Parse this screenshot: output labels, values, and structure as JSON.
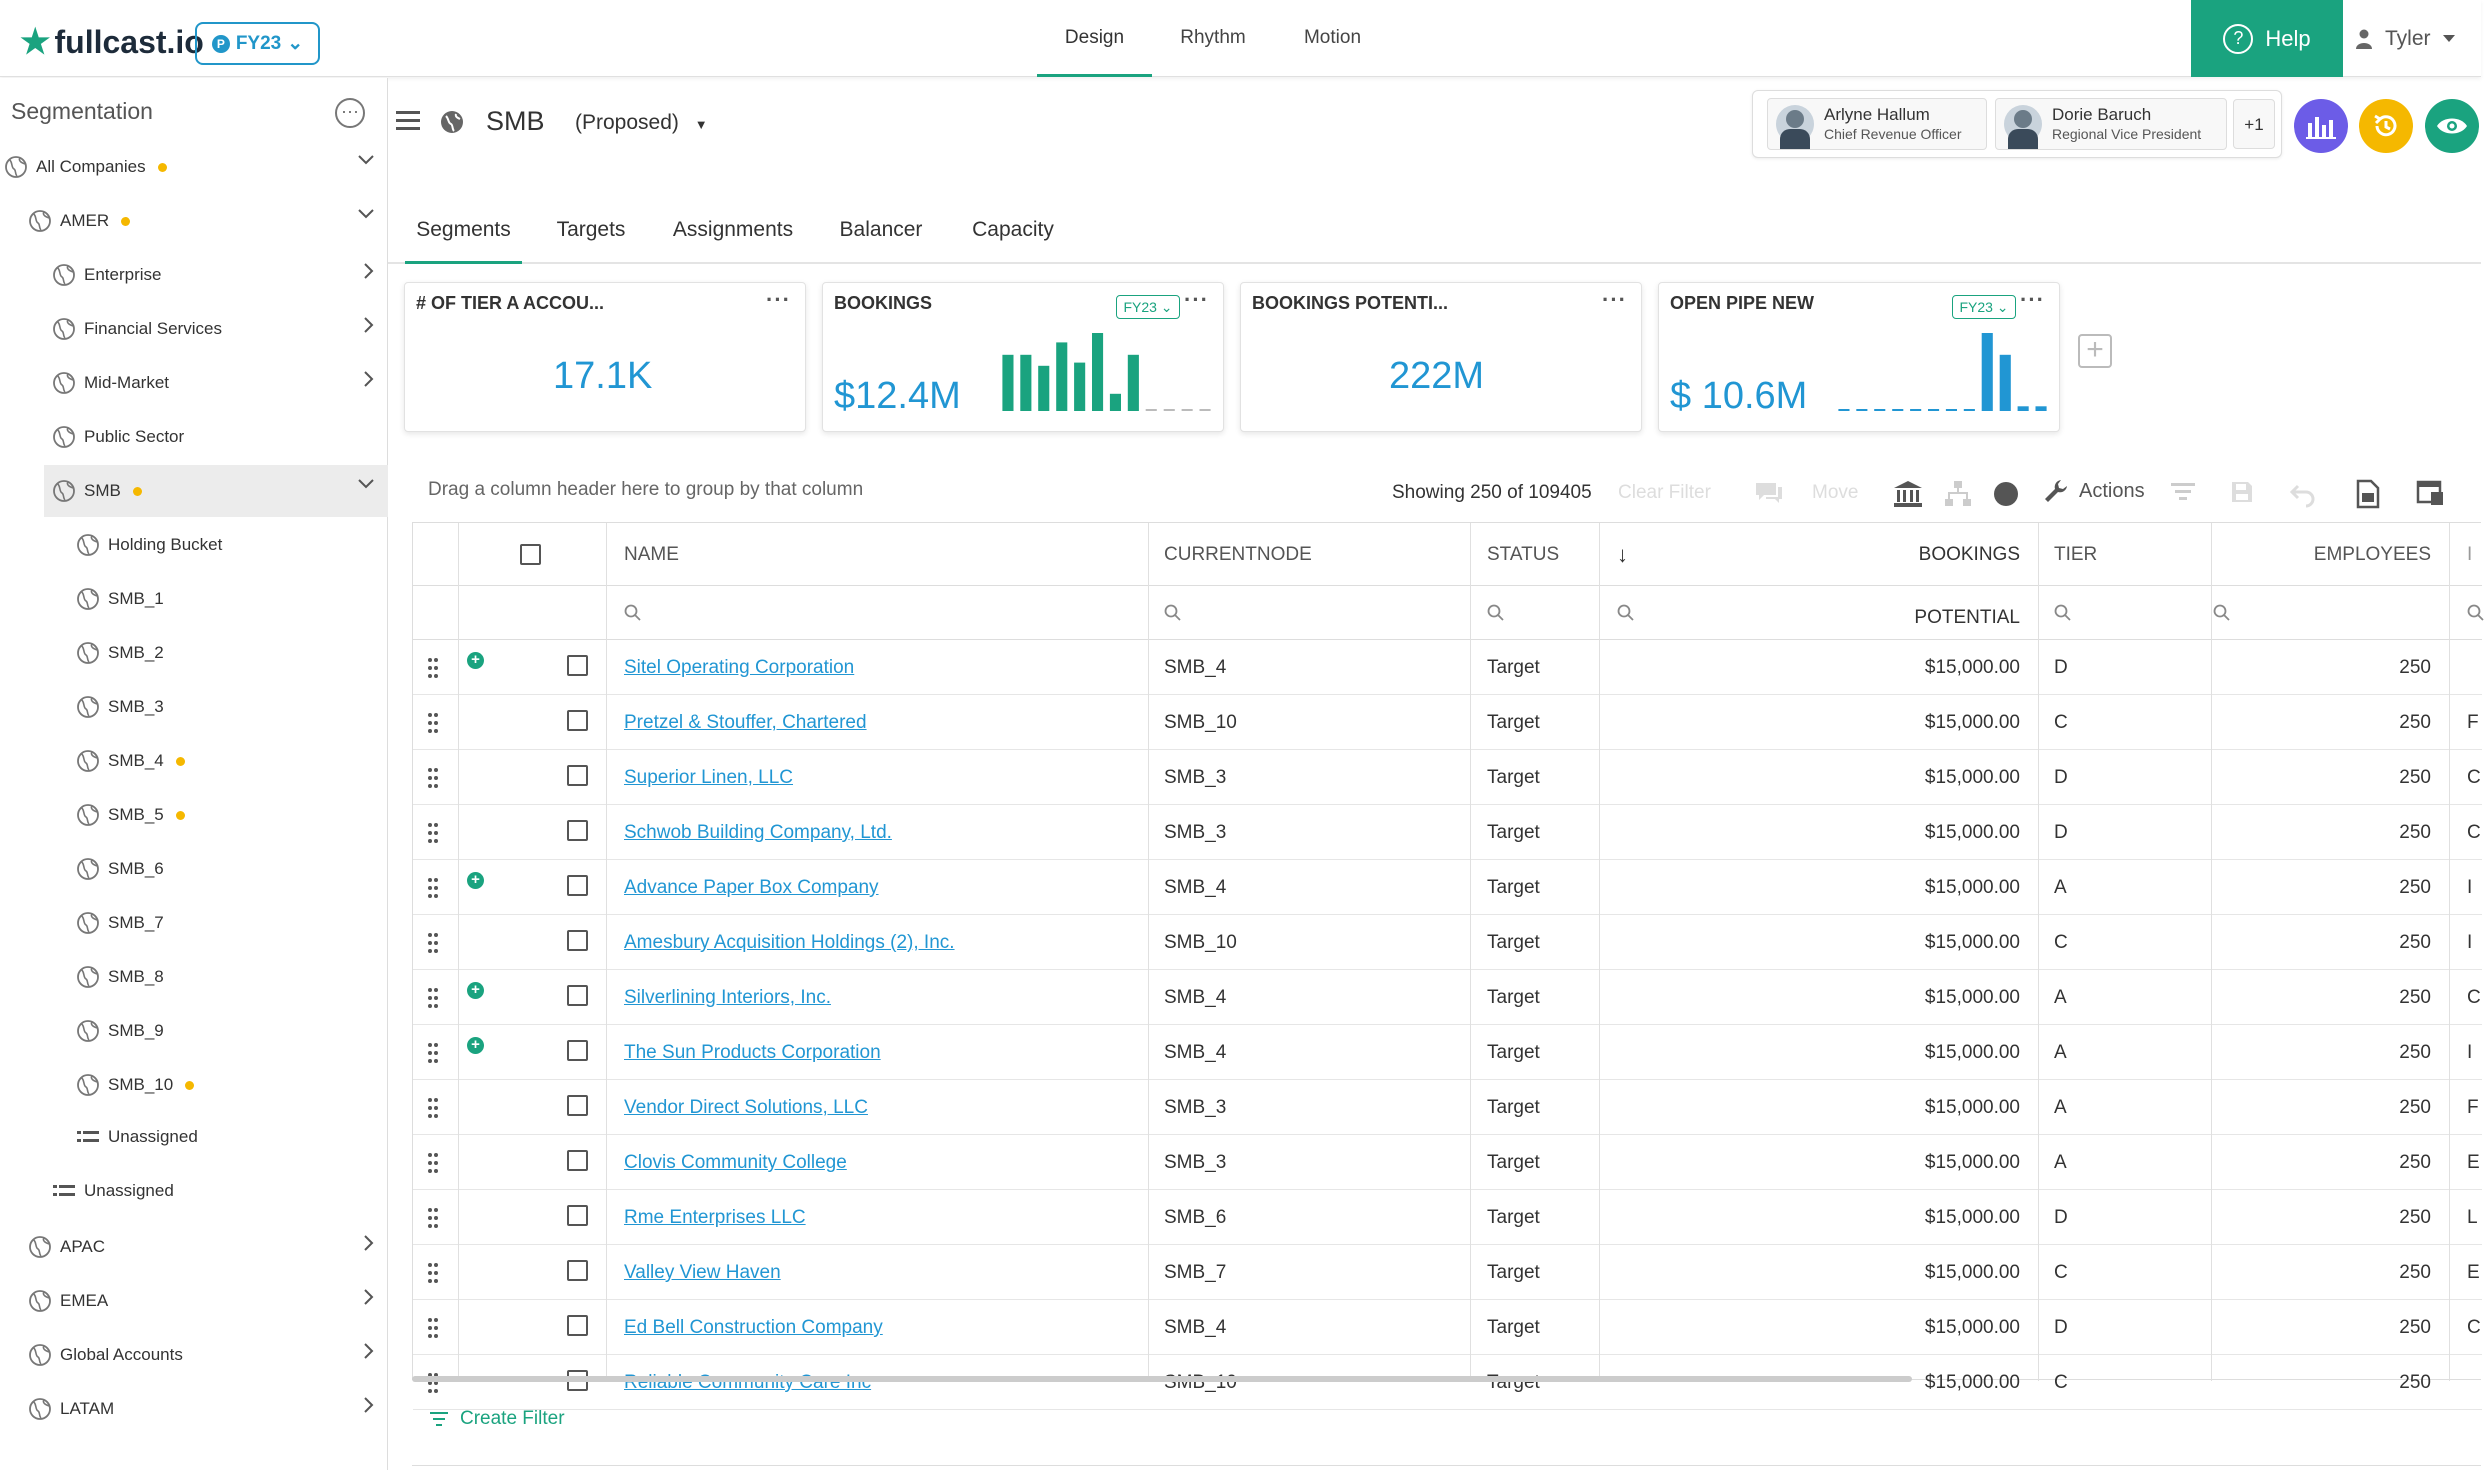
{
  "app": {
    "logo_text": "fullcast.io",
    "fy_label": "FY23",
    "fy_badge": "P"
  },
  "nav": {
    "tabs": [
      "Design",
      "Rhythm",
      "Motion"
    ],
    "active": "Design",
    "help_label": "Help",
    "user_name": "Tyler"
  },
  "sidebar": {
    "title": "Segmentation",
    "items": [
      {
        "label": "All Companies",
        "dot": true,
        "chevron": "down"
      },
      {
        "label": "AMER",
        "dot": true,
        "chevron": "down"
      },
      {
        "label": "Enterprise",
        "dot": false,
        "chevron": "right"
      },
      {
        "label": "Financial Services",
        "dot": false,
        "chevron": "right"
      },
      {
        "label": "Mid-Market",
        "dot": false,
        "chevron": "right"
      },
      {
        "label": "Public Sector",
        "dot": false,
        "chevron": ""
      },
      {
        "label": "SMB",
        "dot": true,
        "chevron": "down",
        "selected": true
      },
      {
        "label": "Holding Bucket",
        "dot": false,
        "chevron": ""
      },
      {
        "label": "SMB_1",
        "dot": false,
        "chevron": ""
      },
      {
        "label": "SMB_2",
        "dot": false,
        "chevron": ""
      },
      {
        "label": "SMB_3",
        "dot": false,
        "chevron": ""
      },
      {
        "label": "SMB_4",
        "dot": true,
        "chevron": ""
      },
      {
        "label": "SMB_5",
        "dot": true,
        "chevron": ""
      },
      {
        "label": "SMB_6",
        "dot": false,
        "chevron": ""
      },
      {
        "label": "SMB_7",
        "dot": false,
        "chevron": ""
      },
      {
        "label": "SMB_8",
        "dot": false,
        "chevron": ""
      },
      {
        "label": "SMB_9",
        "dot": false,
        "chevron": ""
      },
      {
        "label": "SMB_10",
        "dot": true,
        "chevron": ""
      },
      {
        "label": "Unassigned",
        "dot": false,
        "chevron": ""
      },
      {
        "label": "Unassigned",
        "dot": false,
        "chevron": ""
      },
      {
        "label": "APAC",
        "dot": false,
        "chevron": "right"
      },
      {
        "label": "EMEA",
        "dot": false,
        "chevron": "right"
      },
      {
        "label": "Global Accounts",
        "dot": false,
        "chevron": "right"
      },
      {
        "label": "LATAM",
        "dot": false,
        "chevron": "right"
      }
    ]
  },
  "header": {
    "segment": "SMB",
    "state": "(Proposed)"
  },
  "collaborators": [
    {
      "name": "Arlyne Hallum",
      "role": "Chief Revenue Officer"
    },
    {
      "name": "Dorie Baruch",
      "role": "Regional Vice President"
    }
  ],
  "collaborators_more": "+1",
  "tabs": [
    "Segments",
    "Targets",
    "Assignments",
    "Balancer",
    "Capacity"
  ],
  "active_tab": "Segments",
  "cards": [
    {
      "title": "# OF TIER A ACCOU...",
      "value": "17.1K"
    },
    {
      "title": "BOOKINGS",
      "value": "$12.4M",
      "fy": "FY23",
      "bars": [
        0.72,
        0.72,
        0.58,
        0.88,
        0.62,
        1.0,
        0.22,
        0.72,
        0.02,
        0.02,
        0.02,
        0.02
      ],
      "bar_color": "#1aa37f"
    },
    {
      "title": "BOOKINGS POTENTI...",
      "value": "222M"
    },
    {
      "title": "OPEN PIPE NEW",
      "value": "$ 10.6M",
      "fy": "FY23",
      "bars": [
        0.02,
        0.02,
        0.02,
        0.02,
        0.02,
        0.02,
        0.02,
        0.02,
        1.0,
        0.72,
        0.06,
        0.06
      ],
      "bar_color": "#2196d3"
    }
  ],
  "toolbar": {
    "group_hint": "Drag a column header here to group by that column",
    "showing": "Showing 250 of 109405",
    "clear_filter": "Clear Filter",
    "move": "Move",
    "actions": "Actions"
  },
  "grid": {
    "columns": [
      "NAME",
      "CURRENTNODE",
      "STATUS",
      "BOOKINGS POTENTIAL",
      "TIER",
      "EMPLOYEES"
    ],
    "sort_indicator": "↓",
    "rows": [
      {
        "name": "Sitel Operating Corporation",
        "node": "SMB_4",
        "status": "Target",
        "potential": "$15,000.00",
        "tier": "D",
        "employees": "250",
        "next": "",
        "plus": true
      },
      {
        "name": "Pretzel & Stouffer, Chartered",
        "node": "SMB_10",
        "status": "Target",
        "potential": "$15,000.00",
        "tier": "C",
        "employees": "250",
        "next": "F",
        "plus": false
      },
      {
        "name": "Superior Linen, LLC",
        "node": "SMB_3",
        "status": "Target",
        "potential": "$15,000.00",
        "tier": "D",
        "employees": "250",
        "next": "C",
        "plus": false
      },
      {
        "name": "Schwob Building Company, Ltd.",
        "node": "SMB_3",
        "status": "Target",
        "potential": "$15,000.00",
        "tier": "D",
        "employees": "250",
        "next": "C",
        "plus": false
      },
      {
        "name": "Advance Paper Box Company",
        "node": "SMB_4",
        "status": "Target",
        "potential": "$15,000.00",
        "tier": "A",
        "employees": "250",
        "next": "I",
        "plus": true
      },
      {
        "name": "Amesbury Acquisition Holdings (2), Inc.",
        "node": "SMB_10",
        "status": "Target",
        "potential": "$15,000.00",
        "tier": "C",
        "employees": "250",
        "next": "I",
        "plus": false
      },
      {
        "name": "Silverlining Interiors, Inc.",
        "node": "SMB_4",
        "status": "Target",
        "potential": "$15,000.00",
        "tier": "A",
        "employees": "250",
        "next": "C",
        "plus": true
      },
      {
        "name": "The Sun Products Corporation",
        "node": "SMB_4",
        "status": "Target",
        "potential": "$15,000.00",
        "tier": "A",
        "employees": "250",
        "next": "I",
        "plus": true
      },
      {
        "name": "Vendor Direct Solutions, LLC",
        "node": "SMB_3",
        "status": "Target",
        "potential": "$15,000.00",
        "tier": "A",
        "employees": "250",
        "next": "F",
        "plus": false
      },
      {
        "name": "Clovis Community College",
        "node": "SMB_3",
        "status": "Target",
        "potential": "$15,000.00",
        "tier": "A",
        "employees": "250",
        "next": "E",
        "plus": false
      },
      {
        "name": "Rme Enterprises LLC",
        "node": "SMB_6",
        "status": "Target",
        "potential": "$15,000.00",
        "tier": "D",
        "employees": "250",
        "next": "L",
        "plus": false
      },
      {
        "name": "Valley View Haven",
        "node": "SMB_7",
        "status": "Target",
        "potential": "$15,000.00",
        "tier": "C",
        "employees": "250",
        "next": "E",
        "plus": false
      },
      {
        "name": "Ed Bell Construction Company",
        "node": "SMB_4",
        "status": "Target",
        "potential": "$15,000.00",
        "tier": "D",
        "employees": "250",
        "next": "C",
        "plus": false
      },
      {
        "name": "Reliable Community Care Inc",
        "node": "SMB_10",
        "status": "Target",
        "potential": "$15,000.00",
        "tier": "C",
        "employees": "250",
        "next": "",
        "plus": false
      }
    ]
  },
  "footer": {
    "create_filter": "Create Filter"
  },
  "colors": {
    "accent": "#1aa37f",
    "link": "#2196d3",
    "dot": "#f5b800",
    "purple": "#6c5ce7",
    "amber": "#f5b800"
  }
}
